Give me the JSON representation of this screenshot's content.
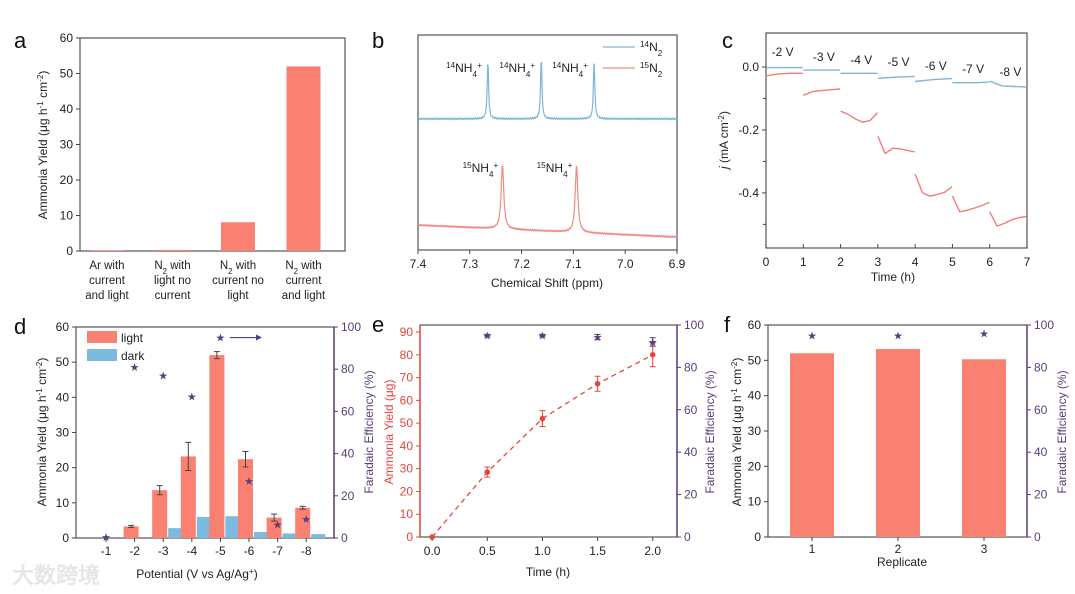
{
  "figure": {
    "watermark": "大数跨境"
  },
  "chart_data": [
    {
      "panel": "a",
      "type": "bar",
      "ylabel": "Ammonia Yield (μg h^{-1} cm^{-2})",
      "ylim": [
        0,
        60
      ],
      "yticks": [
        "0",
        "10",
        "20",
        "30",
        "40",
        "50",
        "60"
      ],
      "categories": [
        [
          "Ar with",
          "current",
          "and light"
        ],
        [
          "N_{2} with",
          "light no",
          "current"
        ],
        [
          "N_{2} with",
          "current no",
          "light"
        ],
        [
          "N_{2} with",
          "current",
          "and light"
        ]
      ],
      "values": [
        0.2,
        0.3,
        8.1,
        52.0
      ],
      "color": "#fa8072"
    },
    {
      "panel": "b",
      "type": "line",
      "xlabel": "Chemical Shift (ppm)",
      "xlim": [
        7.4,
        6.9
      ],
      "xticks": [
        "7.4",
        "7.3",
        "7.2",
        "7.1",
        "7.0",
        "6.9"
      ],
      "ylim": [
        0,
        10
      ],
      "series": [
        {
          "name": "^{14}N_{2}",
          "color": "#7fb6d8",
          "baseline": [
            6.1,
            6.1
          ],
          "hwhm": 0.0016,
          "peaks": [
            {
              "x": 7.265,
              "height": 2.7,
              "label": "^{14}NH_{4}^{+}"
            },
            {
              "x": 7.162,
              "height": 2.85,
              "label": "^{14}NH_{4}^{+}"
            },
            {
              "x": 7.06,
              "height": 2.75,
              "label": "^{14}NH_{4}^{+}"
            }
          ]
        },
        {
          "name": "^{15}N_{2}",
          "color": "#f08a84",
          "baseline": [
            1.16,
            0.6
          ],
          "hwhm": 0.003,
          "peaks": [
            {
              "x": 7.237,
              "height": 3.0,
              "label": "^{15}NH_{4}^{+}"
            },
            {
              "x": 7.094,
              "height": 3.1,
              "label": "^{15}NH_{4}^{+}"
            }
          ]
        }
      ]
    },
    {
      "panel": "c",
      "type": "line",
      "xlabel": "Time (h)",
      "ylabel": "*{j} (mA cm^{-2})",
      "xlim": [
        0,
        7
      ],
      "ylim": [
        -0.575,
        0.108
      ],
      "xticks": [
        "0",
        "1",
        "2",
        "3",
        "4",
        "5",
        "6",
        "7"
      ],
      "yticks": [
        {
          "v": 0.0,
          "label": "0.0"
        },
        {
          "v": -0.2,
          "label": "-0.2"
        },
        {
          "v": -0.4,
          "label": "-0.4"
        }
      ],
      "potential_labels": [
        "-2 V",
        "-3 V",
        "-4 V",
        "-5 V",
        "-6 V",
        "-7 V",
        "-8 V"
      ],
      "series": [
        {
          "name": "dark",
          "color": "#7fb6d8",
          "segments": [
            [
              -0.002,
              -0.002,
              -0.002
            ],
            [
              -0.01,
              -0.01,
              -0.01
            ],
            [
              -0.02,
              -0.02,
              -0.02
            ],
            [
              -0.036,
              -0.032,
              -0.03
            ],
            [
              -0.046,
              -0.04,
              -0.037
            ],
            [
              -0.05,
              -0.05,
              -0.05,
              -0.048
            ],
            [
              -0.045,
              -0.06,
              -0.062,
              -0.064
            ]
          ]
        },
        {
          "name": "light",
          "color": "#f07d78",
          "segments": [
            [
              -0.028,
              -0.022,
              -0.02,
              -0.02
            ],
            [
              -0.09,
              -0.078,
              -0.075,
              -0.072,
              -0.07
            ],
            [
              -0.14,
              -0.15,
              -0.165,
              -0.175,
              -0.17,
              -0.145
            ],
            [
              -0.22,
              -0.275,
              -0.258,
              -0.26,
              -0.265,
              -0.27
            ],
            [
              -0.34,
              -0.4,
              -0.41,
              -0.405,
              -0.398,
              -0.38
            ],
            [
              -0.41,
              -0.46,
              -0.455,
              -0.448,
              -0.44,
              -0.43
            ],
            [
              -0.46,
              -0.505,
              -0.497,
              -0.485,
              -0.478,
              -0.475
            ]
          ]
        }
      ]
    },
    {
      "panel": "d",
      "type": "bar",
      "xlabel": "Potential (V vs Ag/Ag^{+})",
      "ylabel": "Ammonia Yield (μg h^{-1} cm^{-2})",
      "ylabel_right": "Faradaic Efficiency (%)",
      "ylim": [
        0,
        60
      ],
      "ylim_right": [
        0,
        100
      ],
      "yticks": [
        "0",
        "10",
        "20",
        "30",
        "40",
        "50",
        "60"
      ],
      "yticks_right": [
        "0",
        "20",
        "40",
        "60",
        "80",
        "100"
      ],
      "categories": [
        "-1",
        "-2",
        "-3",
        "-4",
        "-5",
        "-6",
        "-7",
        "-8"
      ],
      "series": [
        {
          "name": "light",
          "color": "#fa8072",
          "values": [
            0,
            3.3,
            13.6,
            23.2,
            52.0,
            22.4,
            5.8,
            8.6
          ],
          "errors": [
            0,
            0.3,
            1.3,
            4.0,
            1.0,
            2.2,
            1.0,
            0.4
          ]
        },
        {
          "name": "dark",
          "color": "#7dbadf",
          "values": [
            0,
            0,
            2.8,
            6.0,
            6.2,
            1.7,
            1.3,
            1.1
          ]
        }
      ],
      "fe": {
        "name": "Faradaic Efficiency",
        "color": "#5a3d7a",
        "values": [
          0.5,
          81,
          77,
          67,
          95,
          27,
          6.5,
          9
        ]
      }
    },
    {
      "panel": "e",
      "type": "line",
      "xlabel": "Time (h)",
      "ylabel": "Ammonia Yield (μg)",
      "ylabel_right": "Faradaic Efficiency (%)",
      "xlim": [
        -0.11,
        2.22
      ],
      "ylim": [
        0,
        93.1
      ],
      "ylim_right": [
        0,
        100
      ],
      "xticks": [
        "0.0",
        "0.5",
        "1.0",
        "1.5",
        "2.0"
      ],
      "yticks": [
        "0",
        "10",
        "20",
        "30",
        "40",
        "50",
        "60",
        "70",
        "80",
        "90"
      ],
      "yticks_right": [
        "0",
        "20",
        "40",
        "60",
        "80",
        "100"
      ],
      "yield": {
        "color": "#e8453c",
        "x": [
          0,
          0.5,
          1.0,
          1.5,
          2.0
        ],
        "y": [
          0,
          28.5,
          52,
          67.3,
          80
        ],
        "errors": [
          0,
          2.2,
          3.5,
          3.3,
          5.2
        ]
      },
      "fe": {
        "color": "#5a3d7a",
        "x": [
          0.5,
          1.0,
          1.5,
          2.0
        ],
        "y": [
          95,
          95,
          94.3,
          92
        ],
        "errors": [
          0.6,
          0.6,
          1.2,
          2.0
        ]
      }
    },
    {
      "panel": "f",
      "type": "bar",
      "xlabel": "Replicate",
      "ylabel": "Ammonia Yield (μg h^{-1} cm^{-2})",
      "ylabel_right": "Faradaic Efficiency (%)",
      "ylim": [
        0,
        60
      ],
      "ylim_right": [
        0,
        100
      ],
      "yticks": [
        "0",
        "10",
        "20",
        "30",
        "40",
        "50",
        "60"
      ],
      "yticks_right": [
        "0",
        "20",
        "40",
        "60",
        "80",
        "100"
      ],
      "categories": [
        "1",
        "2",
        "3"
      ],
      "values": [
        52.0,
        53.2,
        50.3
      ],
      "color": "#fa8072",
      "fe": {
        "color": "#5a3d7a",
        "values": [
          95,
          95,
          96
        ]
      }
    }
  ]
}
